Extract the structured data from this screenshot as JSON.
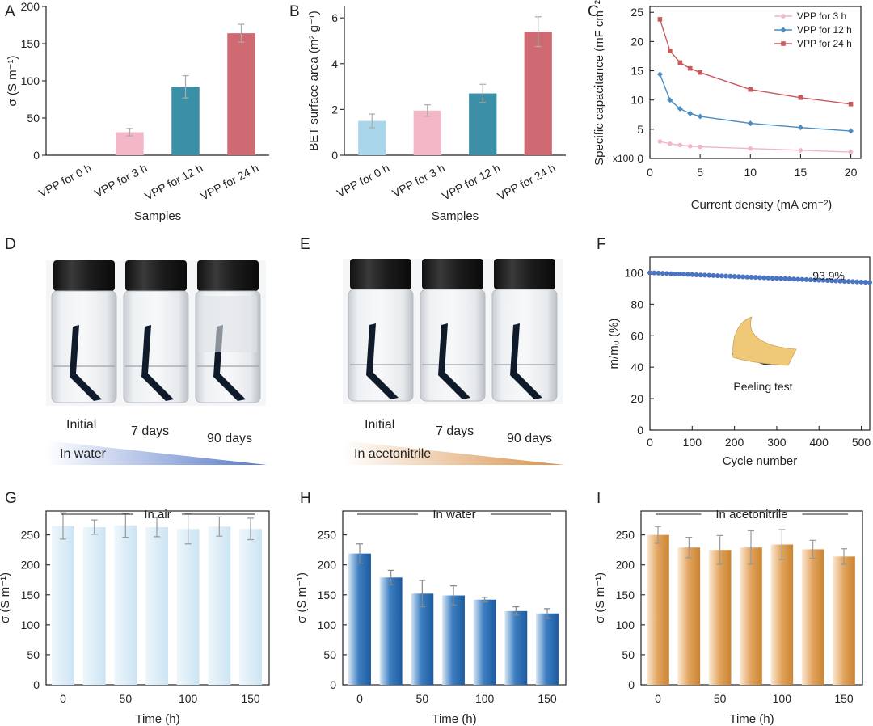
{
  "colors": {
    "pink": "#f4b7c8",
    "teal": "#3b8fa6",
    "red": "#cf6a72",
    "lightblue": "#a9d6ea",
    "paleblue": "#cde6f4",
    "blue": "#2c71b8",
    "orange": "#dda05a",
    "series3": "#f2b7c4",
    "series12": "#4a8cc2",
    "series24": "#c85a5d",
    "cycle": "#4a74c2"
  },
  "chart_data": [
    {
      "panel": "A",
      "type": "bar",
      "ylabel": "σ (S m⁻¹)",
      "xlabel": "Samples",
      "ylim": [
        0,
        200
      ],
      "yticks": [
        "0",
        "50",
        "100",
        "150",
        "200"
      ],
      "categories": [
        "VPP for 0 h",
        "VPP for 3 h",
        "VPP for 12 h",
        "VPP for 24 h"
      ],
      "values": [
        0,
        31,
        92,
        164
      ],
      "errors": [
        0,
        5,
        15,
        12
      ]
    },
    {
      "panel": "B",
      "type": "bar",
      "ylabel": "BET surface area (m² g⁻¹)",
      "xlabel": "Samples",
      "ylim": [
        0,
        6.5
      ],
      "yticks": [
        "0",
        "2",
        "4",
        "6"
      ],
      "categories": [
        "VPP for 0 h",
        "VPP for 3 h",
        "VPP for 12 h",
        "VPP for 24 h"
      ],
      "values": [
        1.5,
        1.95,
        2.7,
        5.4
      ],
      "errors": [
        0.3,
        0.25,
        0.4,
        0.65
      ]
    },
    {
      "panel": "C",
      "type": "line",
      "ylabel": "Specific capacitance (mF cm⁻²)",
      "xlabel": "Current density (mA cm⁻²)",
      "y_multiplier": "x100",
      "xlim": [
        0,
        21
      ],
      "ylim": [
        0,
        26
      ],
      "xticks": [
        "0",
        "5",
        "10",
        "15",
        "20"
      ],
      "yticks": [
        "0",
        "5",
        "10",
        "15",
        "20",
        "25"
      ],
      "x": [
        1,
        2,
        3,
        4,
        5,
        10,
        15,
        20
      ],
      "series": [
        {
          "name": "VPP for 3 h",
          "values": [
            2.9,
            2.5,
            2.3,
            2.1,
            2.0,
            1.7,
            1.4,
            1.1
          ]
        },
        {
          "name": "VPP for 12 h",
          "values": [
            14.4,
            10.0,
            8.5,
            7.7,
            7.2,
            6.0,
            5.3,
            4.7
          ]
        },
        {
          "name": "VPP for 24 h",
          "values": [
            23.8,
            18.4,
            16.4,
            15.4,
            14.7,
            11.8,
            10.4,
            9.3
          ]
        }
      ]
    },
    {
      "panel": "F",
      "type": "line",
      "ylabel": "m/m₀ (%)",
      "xlabel": "Cycle number",
      "xlim": [
        0,
        520
      ],
      "ylim": [
        0,
        110
      ],
      "xticks": [
        "0",
        "100",
        "200",
        "300",
        "400",
        "500"
      ],
      "yticks": [
        "0",
        "20",
        "40",
        "60",
        "80",
        "100"
      ],
      "start_value": 100,
      "end_value": 93.9,
      "annotation": "93.9%",
      "inset_label": "Peeling test"
    },
    {
      "panel": "G",
      "type": "bar",
      "title": "In air",
      "ylabel": "σ (S m⁻¹)",
      "xlabel": "Time (h)",
      "ylim": [
        0,
        290
      ],
      "yticks": [
        "0",
        "50",
        "100",
        "150",
        "200",
        "250"
      ],
      "xticks": [
        "0",
        "50",
        "100",
        "150"
      ],
      "x": [
        0,
        25,
        50,
        75,
        100,
        125,
        150
      ],
      "values": [
        265,
        263,
        266,
        263,
        260,
        264,
        260
      ],
      "errors": [
        22,
        12,
        20,
        16,
        25,
        16,
        18
      ]
    },
    {
      "panel": "H",
      "type": "bar",
      "title": "In water",
      "ylabel": "σ (S m⁻¹)",
      "xlabel": "Time (h)",
      "ylim": [
        0,
        290
      ],
      "yticks": [
        "0",
        "50",
        "100",
        "150",
        "200",
        "250"
      ],
      "xticks": [
        "0",
        "50",
        "100",
        "150"
      ],
      "x": [
        0,
        25,
        50,
        75,
        100,
        125,
        150
      ],
      "values": [
        219,
        179,
        152,
        149,
        142,
        123,
        119
      ],
      "errors": [
        16,
        12,
        22,
        16,
        4,
        7,
        8
      ]
    },
    {
      "panel": "I",
      "type": "bar",
      "title": "In acetonitrile",
      "ylabel": "σ (S m⁻¹)",
      "xlabel": "Time (h)",
      "ylim": [
        0,
        290
      ],
      "yticks": [
        "0",
        "50",
        "100",
        "150",
        "200",
        "250"
      ],
      "xticks": [
        "0",
        "50",
        "100",
        "150"
      ],
      "x": [
        0,
        25,
        50,
        75,
        100,
        125,
        150
      ],
      "values": [
        250,
        229,
        225,
        229,
        234,
        226,
        214
      ],
      "errors": [
        14,
        17,
        24,
        28,
        25,
        15,
        13
      ]
    }
  ],
  "photos": {
    "D": {
      "captions": [
        "Initial",
        "7 days",
        "90 days"
      ],
      "gradient_label": "In water"
    },
    "E": {
      "captions": [
        "Initial",
        "7 days",
        "90 days"
      ],
      "gradient_label": "In acetonitrile"
    }
  },
  "panel_labels": [
    "A",
    "B",
    "C",
    "D",
    "E",
    "F",
    "G",
    "H",
    "I"
  ]
}
